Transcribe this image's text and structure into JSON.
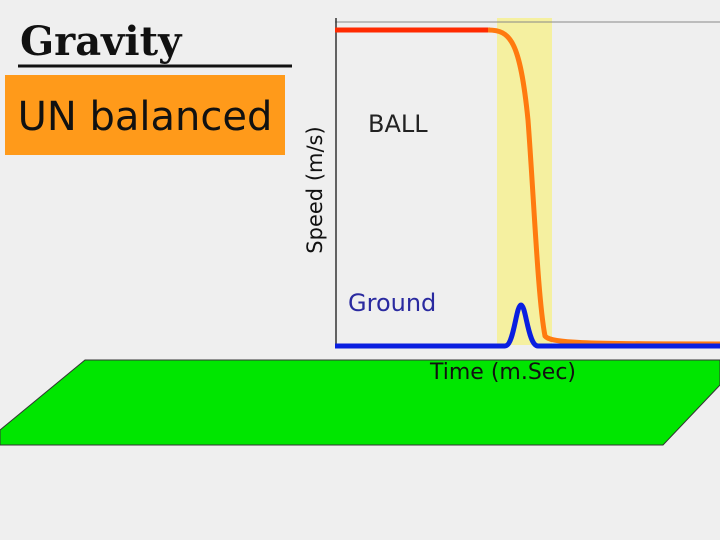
{
  "title": "Gravity",
  "label_box": "UN balanced",
  "graph": {
    "y_axis_label": "Speed (m/s)",
    "x_axis_label": "Time (m.Sec)",
    "ball_label": "BALL",
    "ground_label": "Ground"
  }
}
